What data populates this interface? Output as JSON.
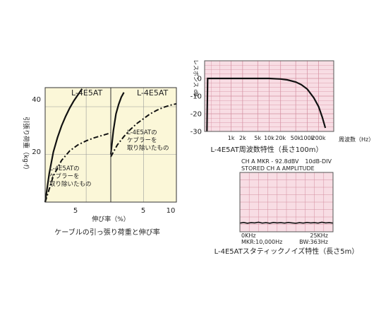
{
  "chart_data": [
    {
      "type": "line",
      "caption": "ケーブルの引っ張り荷重と伸び率",
      "ylabel": "引張り荷重（kg·f）",
      "xlabel": "伸び率（%）",
      "ylim": [
        0,
        48
      ],
      "y_ticks": [
        {
          "value": 20,
          "label": "20"
        },
        {
          "value": 40,
          "label": "40"
        }
      ],
      "grid": true,
      "panels": [
        {
          "name": "L-4E5AT",
          "xlim": [
            0,
            8
          ],
          "x_ticks": [
            {
              "value": 5,
              "label": "5"
            }
          ],
          "series": [
            {
              "name": "L-4E5AT",
              "style": "solid",
              "x": [
                0,
                0.5,
                1,
                1.5,
                2,
                2.5,
                3,
                3.5,
                4,
                4.5
              ],
              "y": [
                0,
                12,
                21,
                27,
                32,
                36,
                39.5,
                42.5,
                45,
                47.5
              ]
            },
            {
              "name": "L-4E5ATのケブラーを取り除いたもの",
              "style": "dashdot",
              "x": [
                0,
                1,
                2,
                3,
                4,
                5,
                6,
                7,
                8
              ],
              "y": [
                0,
                11,
                17.5,
                21.5,
                24,
                25.7,
                27,
                28,
                29
              ]
            }
          ],
          "annotations": [
            "L-4E5AT",
            "L-4E5ATの",
            "ケブラーを",
            "取り除いたもの"
          ]
        },
        {
          "name": "L-4E5AT",
          "xlim": [
            0,
            10
          ],
          "x_ticks": [
            {
              "value": 5,
              "label": "5"
            },
            {
              "value": 10,
              "label": "10"
            }
          ],
          "series": [
            {
              "name": "L-4E5AT",
              "style": "solid",
              "x": [
                0,
                0.4,
                0.8,
                1.2,
                1.6,
                2.0
              ],
              "y": [
                20,
                30,
                37,
                41,
                44,
                46
              ]
            },
            {
              "name": "L-4E5ATのケブラーを取り除いたもの",
              "style": "dashdot",
              "x": [
                0,
                1,
                2,
                3,
                4,
                5,
                6,
                7,
                8,
                9,
                10
              ],
              "y": [
                19,
                24,
                27.5,
                30.5,
                33,
                35,
                37,
                38.5,
                39.7,
                40.6,
                41.2
              ]
            }
          ],
          "annotations": [
            "L-4E5AT",
            "L-4E5ATの",
            "ケブラーを",
            "取り除いたもの"
          ]
        }
      ]
    },
    {
      "type": "line",
      "caption": "L-4E5AT周波数特性（長さ100m）",
      "ylabel": "レスポンス dB",
      "xlabel": "周波数（Hz）",
      "x_scale": "log",
      "xlim": [
        200,
        500000
      ],
      "ylim": [
        -30,
        10
      ],
      "y_ticks": [
        {
          "value": 0,
          "label": "0"
        },
        {
          "value": -10,
          "label": "-10"
        },
        {
          "value": -20,
          "label": "-20"
        },
        {
          "value": -30,
          "label": "-30"
        }
      ],
      "x_ticks": [
        {
          "value": 1000,
          "label": "1k"
        },
        {
          "value": 2000,
          "label": "2k"
        },
        {
          "value": 5000,
          "label": "5k"
        },
        {
          "value": 10000,
          "label": "10k"
        },
        {
          "value": 20000,
          "label": "20k"
        },
        {
          "value": 50000,
          "label": "50k"
        },
        {
          "value": 100000,
          "label": "100k"
        },
        {
          "value": 200000,
          "label": "200k"
        }
      ],
      "grid": true,
      "series": [
        {
          "name": "L-4E5AT",
          "x": [
            230,
            240,
            300,
            1000,
            10000,
            20000,
            30000,
            50000,
            70000,
            100000,
            150000,
            200000,
            250000,
            300000
          ],
          "y": [
            -30,
            0,
            0,
            0,
            0,
            -0.3,
            -0.8,
            -2,
            -3.5,
            -6,
            -11,
            -16,
            -22,
            -28
          ]
        }
      ]
    },
    {
      "type": "line",
      "caption": "L-4E5ATスタティックノイズ特性（長さ5m）",
      "header_lines": [
        "CH A MKR - 92.8dBV",
        "10dB-DIV",
        "STORED CH A AMPLITUDE"
      ],
      "footer_lines": [
        "0KHz",
        "25KHz",
        "MKR:10,000Hz",
        "BW:363Hz"
      ],
      "xlim": [
        0,
        25000
      ],
      "grid": true,
      "series": [
        {
          "name": "noise",
          "x": [
            0,
            1000,
            2000,
            3000,
            4000,
            5000,
            6000,
            7000,
            8000,
            9000,
            10000,
            11000,
            12000,
            13000,
            14000,
            15000,
            16000,
            17000,
            18000,
            19000,
            20000,
            21000,
            22000,
            23000,
            24000,
            25000
          ],
          "y": [
            0.42,
            0.45,
            0.41,
            0.44,
            0.43,
            0.46,
            0.42,
            0.44,
            0.41,
            0.45,
            0.43,
            0.44,
            0.42,
            0.45,
            0.43,
            0.41,
            0.44,
            0.42,
            0.45,
            0.43,
            0.44,
            0.42,
            0.46,
            0.43,
            0.44,
            0.42
          ]
        }
      ]
    }
  ],
  "colors": {
    "left_bg": "#fbf7d8",
    "pink_bg": "#f8dde4",
    "grid_grey": "#9a9a9a",
    "pink_grid": "#d48ea0",
    "curve": "#111111"
  }
}
